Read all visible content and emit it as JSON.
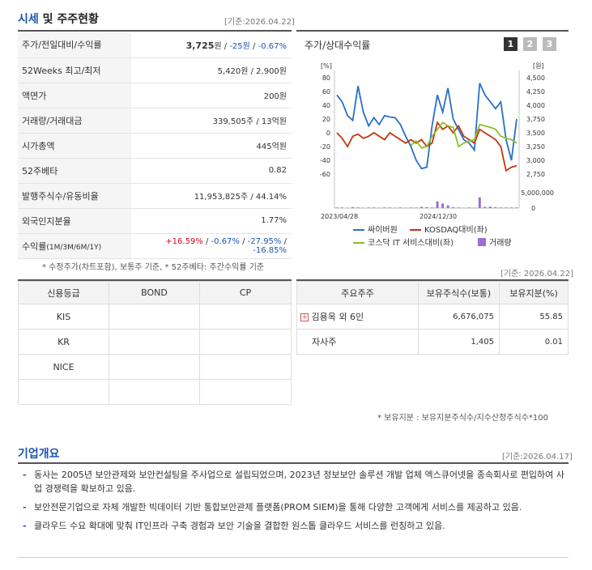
{
  "market": {
    "title_hl": "시세",
    "title_rest": " 및 주주현황",
    "date": "[기준:2026.04.22]"
  },
  "info_rows": [
    {
      "label": "주가/전일대비/수익률"
    },
    {
      "label": "52Weeks 최고/최저",
      "value": "5,420원 / 2,900원"
    },
    {
      "label": "액면가",
      "value": "200원"
    },
    {
      "label": "거래량/거래대금",
      "value": "339,505주 / 13억원"
    },
    {
      "label": "시가총액",
      "value": "445억원"
    },
    {
      "label": "52주베타",
      "value": "0.82"
    },
    {
      "label": "발행주식수/유동비율",
      "value": "11,953,825주 / 44.14%"
    },
    {
      "label": "외국인지분율",
      "value": "1.77%"
    },
    {
      "label": "수익률",
      "sub": "(1M/3M/6M/1Y)"
    }
  ],
  "price": {
    "value": "3,725",
    "unit": "원",
    "sep1": " / ",
    "change": "-25원",
    "sep2": " / ",
    "rate": "-0.67%"
  },
  "returns": {
    "r1m": "+16.59%",
    "r3m": "-0.67%",
    "r6m": "-27.95%",
    "r1y": "-16.85%",
    "sep": "/ "
  },
  "footnote_left": "* 수정주가(차트포함), 보통주 기준, * 52주베타: 주간수익률 기준",
  "chart": {
    "title": "주가/상대수익률",
    "pages": [
      "1",
      "2",
      "3"
    ],
    "left_unit": "[%]",
    "right_unit": "[원]",
    "x_labels": [
      "2023/04/28",
      "2024/12/30"
    ],
    "legend": {
      "a": "싸이버원",
      "b": "KOSDAQ대비(좌)",
      "c": "코스닥 IT 서비스대비(좌)",
      "d": "거래량"
    }
  },
  "chart_data": {
    "type": "line",
    "left_ticks": [
      "80",
      "60",
      "40",
      "20",
      "0",
      "-20",
      "-40",
      "-60"
    ],
    "right_ticks": [
      "4,500",
      "4,250",
      "4,000",
      "3,750",
      "3,500",
      "3,250",
      "3,000",
      "2,750"
    ],
    "volume_tick": "5,000,000",
    "volume_zero": "0",
    "ylim_left": [
      -70,
      90
    ],
    "series": [
      {
        "name": "싸이버원",
        "color": "#2a6fc9",
        "values": [
          55,
          45,
          25,
          18,
          68,
          30,
          10,
          22,
          12,
          25,
          23,
          22,
          12,
          -5,
          -20,
          -40,
          -52,
          -50,
          10,
          55,
          30,
          65,
          20,
          5,
          -10,
          -15,
          -25,
          72,
          55,
          45,
          35,
          45,
          -10,
          -40,
          20
        ]
      },
      {
        "name": "KOSDAQ대비(좌)",
        "color": "#c0380e",
        "values": [
          0,
          -8,
          -20,
          -5,
          -2,
          -8,
          -5,
          0,
          -5,
          -10,
          0,
          -5,
          -10,
          -15,
          -10,
          -15,
          -10,
          -20,
          -15,
          15,
          5,
          10,
          0,
          10,
          -5,
          -10,
          -15,
          5,
          0,
          -5,
          -10,
          -20,
          -55,
          -50,
          -48
        ]
      },
      {
        "name": "코스닥 IT 서비스대비(좌)",
        "color": "#8bbf2e",
        "values": [
          null,
          null,
          null,
          null,
          null,
          null,
          null,
          null,
          null,
          null,
          null,
          null,
          null,
          null,
          -18,
          -12,
          -22,
          -20,
          -5,
          5,
          15,
          10,
          8,
          -20,
          -15,
          -12,
          -10,
          12,
          10,
          8,
          5,
          -5,
          -8,
          -10,
          -15
        ]
      }
    ],
    "volume": {
      "name": "거래량",
      "color": "#9b6fd6",
      "values": [
        0.2,
        0.2,
        0.1,
        0.3,
        0.2,
        0.1,
        0.2,
        0.2,
        0.1,
        0.2,
        0.2,
        0.1,
        0.2,
        0.1,
        0.2,
        0.2,
        0.4,
        0.3,
        0.2,
        2.2,
        1.5,
        0.9,
        0.3,
        0.2,
        0.1,
        0.2,
        0.1,
        3.5,
        0.4,
        0.5,
        0.3,
        0.2,
        0.2,
        0.2,
        0.2
      ]
    }
  },
  "credit": {
    "headers": [
      "신용등급",
      "BOND",
      "CP"
    ],
    "rows": [
      "KIS",
      "KR",
      "NICE"
    ]
  },
  "shareholders": {
    "date": "[기준: 2026.04.22]",
    "headers": [
      "주요주주",
      "보유주식수(보통)",
      "보유지분(%)"
    ],
    "rows": [
      {
        "name": "김용옥 외 6인",
        "shares": "6,676,075",
        "pct": "55.85"
      },
      {
        "name": "자사주",
        "shares": "1,405",
        "pct": "0.01"
      }
    ],
    "note": "* 보유지분 : 보유지분주식수/지수산정주식수*100"
  },
  "overview": {
    "title": "기업개요",
    "date": "[기준:2026.04.17]",
    "items": [
      "동사는 2005년 보안관제와 보안컨설팅을 주사업으로 설립되었으며, 2023년 정보보안 솔루션 개발 업체 엑스큐어넷을 종속회사로 편입하여 사업 경쟁력을 확보하고 있음.",
      "보안전문기업으로 자체 개발한 빅데이터 기반 통합보안관제 플랫폼(PROM SIEM)을 통해 다양한 고객에게 서비스를 제공하고 있음.",
      "클라우드 수요 확대에 맞춰 IT인프라 구축 경험과 보안 기술을 결합한 원스톱 클라우드 서비스를 런칭하고 있음."
    ]
  }
}
